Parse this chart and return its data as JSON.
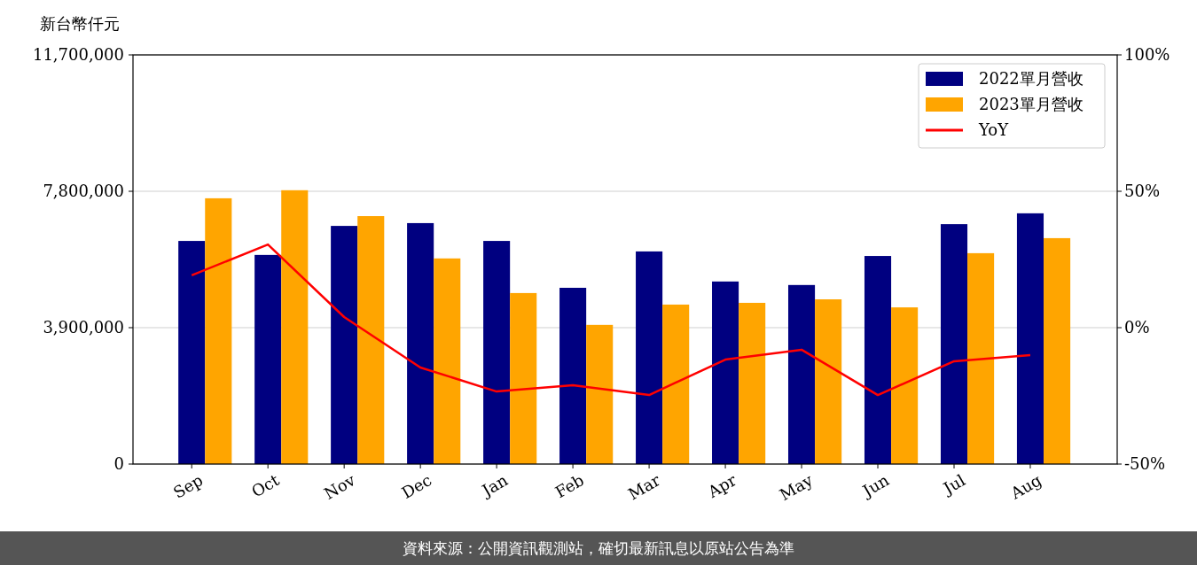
{
  "chart_data": {
    "type": "bar",
    "ylabel": "新台幣仟元",
    "categories": [
      "Sep",
      "Oct",
      "Nov",
      "Dec",
      "Jan",
      "Feb",
      "Mar",
      "Apr",
      "May",
      "Jun",
      "Jul",
      "Aug"
    ],
    "series": [
      {
        "name": "2022單月營收",
        "color": "#000080",
        "values": [
          6380000,
          5980000,
          6810000,
          6890000,
          6380000,
          5040000,
          6080000,
          5220000,
          5120000,
          5950000,
          6860000,
          7170000
        ]
      },
      {
        "name": "2023單月營收",
        "color": "#ffa500",
        "values": [
          7600000,
          7830000,
          7090000,
          5880000,
          4890000,
          3980000,
          4560000,
          4610000,
          4710000,
          4480000,
          6030000,
          6460000
        ]
      },
      {
        "name": "YoY",
        "type": "line",
        "axis": "y2",
        "color": "#ff0000",
        "values": [
          19.2,
          30.5,
          3.9,
          -14.6,
          -23.4,
          -21.1,
          -24.7,
          -11.7,
          -8.1,
          -24.7,
          -12.3,
          -10.1
        ]
      }
    ],
    "ylim": [
      0,
      11700000
    ],
    "yticks": [
      {
        "value": 0,
        "label": "0"
      },
      {
        "value": 3900000,
        "label": "3,900,000"
      },
      {
        "value": 7800000,
        "label": "7,800,000"
      },
      {
        "value": 11700000,
        "label": "11,700,000"
      }
    ],
    "y2lim": [
      -50,
      100
    ],
    "y2ticks": [
      {
        "value": -50,
        "label": "-50%"
      },
      {
        "value": 0,
        "label": "0%"
      },
      {
        "value": 50,
        "label": "50%"
      },
      {
        "value": 100,
        "label": "100%"
      }
    ],
    "grid": "y",
    "legend": "top right",
    "marker": "none",
    "line_style": "solid",
    "annotations": [
      "資料來源：公開資訊觀測站，確切最新訊息以原站公告為準"
    ]
  }
}
